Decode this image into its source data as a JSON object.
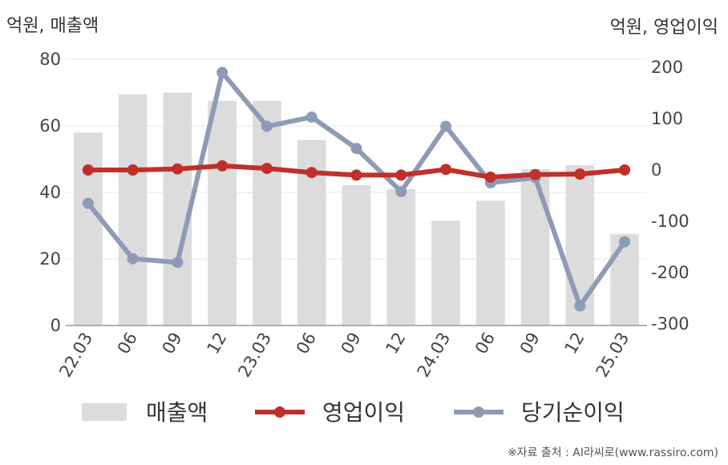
{
  "chart_data": {
    "type": "bar+line",
    "categories": [
      "22.03",
      "06",
      "09",
      "12",
      "23.03",
      "06",
      "09",
      "12",
      "24.03",
      "06",
      "09",
      "12",
      "25.03"
    ],
    "series": [
      {
        "name": "매출액",
        "type": "bar",
        "axis": "left",
        "values": [
          58,
          69.5,
          70,
          67.5,
          67.5,
          55.8,
          42.2,
          41,
          31.5,
          37.5,
          47,
          48.2,
          27.5
        ]
      },
      {
        "name": "영업이익",
        "type": "line",
        "axis": "right",
        "values": [
          0,
          0,
          2,
          8,
          3,
          -5,
          -10,
          -10,
          1,
          -14,
          -9,
          -8,
          0
        ]
      },
      {
        "name": "당기순이익",
        "type": "line",
        "axis": "right",
        "values": [
          -65,
          -173,
          -180,
          190,
          85,
          103,
          42,
          -42,
          85,
          -25,
          -15,
          -265,
          -140
        ]
      }
    ],
    "y_left": {
      "label": "억원, 매출액",
      "lim": [
        0,
        80
      ],
      "ticks": [
        0,
        20,
        40,
        60,
        80
      ]
    },
    "y_right": {
      "label": "억원, 영업이익",
      "lim": [
        -300,
        220
      ],
      "ticks": [
        -300,
        -200,
        -100,
        0,
        100,
        200
      ]
    },
    "grid": true,
    "legend_position": "bottom",
    "colors": {
      "bar": "#dcdcdc",
      "operating": "#c0302b",
      "net": "#8e9bb6",
      "grid": "#e6e6e6",
      "axis": "#999999"
    }
  },
  "source_text": "※자료 출처 : AI라씨로(www.rassiro.com)"
}
